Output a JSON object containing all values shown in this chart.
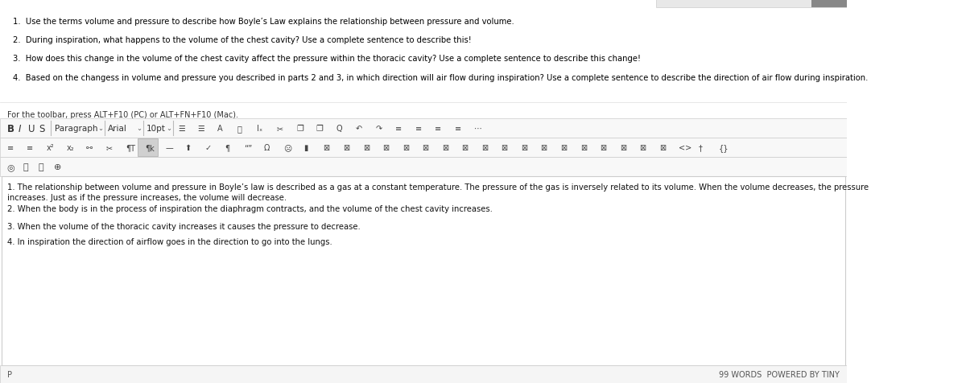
{
  "bg_color": "#ffffff",
  "top_bar_color": "#f5f5f5",
  "toolbar_bg": "#f0f0f0",
  "toolbar_border": "#cccccc",
  "text_color": "#000000",
  "gray_text": "#555555",
  "questions": [
    "1.  Use the terms volume and pressure to describe how Boyle’s Law explains the relationship between pressure and volume.",
    "2.  During inspiration, what happens to the volume of the chest cavity? Use a complete sentence to describe this!",
    "3.  How does this change in the volume of the chest cavity affect the pressure within the thoracic cavity? Use a complete sentence to describe this change!",
    "4.  Based on the changess in volume and pressure you described in parts 2 and 3, in which direction will air flow during inspiration? Use a complete sentence to describe the direction of air flow during inspiration."
  ],
  "toolbar_hint": "For the toolbar, press ALT+F10 (PC) or ALT+FN+F10 (Mac).",
  "answers": [
    "1. The relationship between volume and pressure in Boyle’s law is described as a gas at a constant temperature. The pressure of the gas is inversely related to its volume. When the volume decreases, the pressure\nincreases. Just as if the pressure increases, the volume will decrease.",
    "2. When the body is in the process of inspiration the diaphragm contracts, and the volume of the chest cavity increases.",
    "3. When the volume of the thoracic cavity increases it causes the pressure to decrease.",
    "4. In inspiration the direction of airflow goes in the direction to go into the lungs."
  ],
  "footer_left": "P",
  "footer_right": "99 WORDS  POWERED BY TINY",
  "figsize": [
    12.0,
    4.77
  ],
  "dpi": 100
}
